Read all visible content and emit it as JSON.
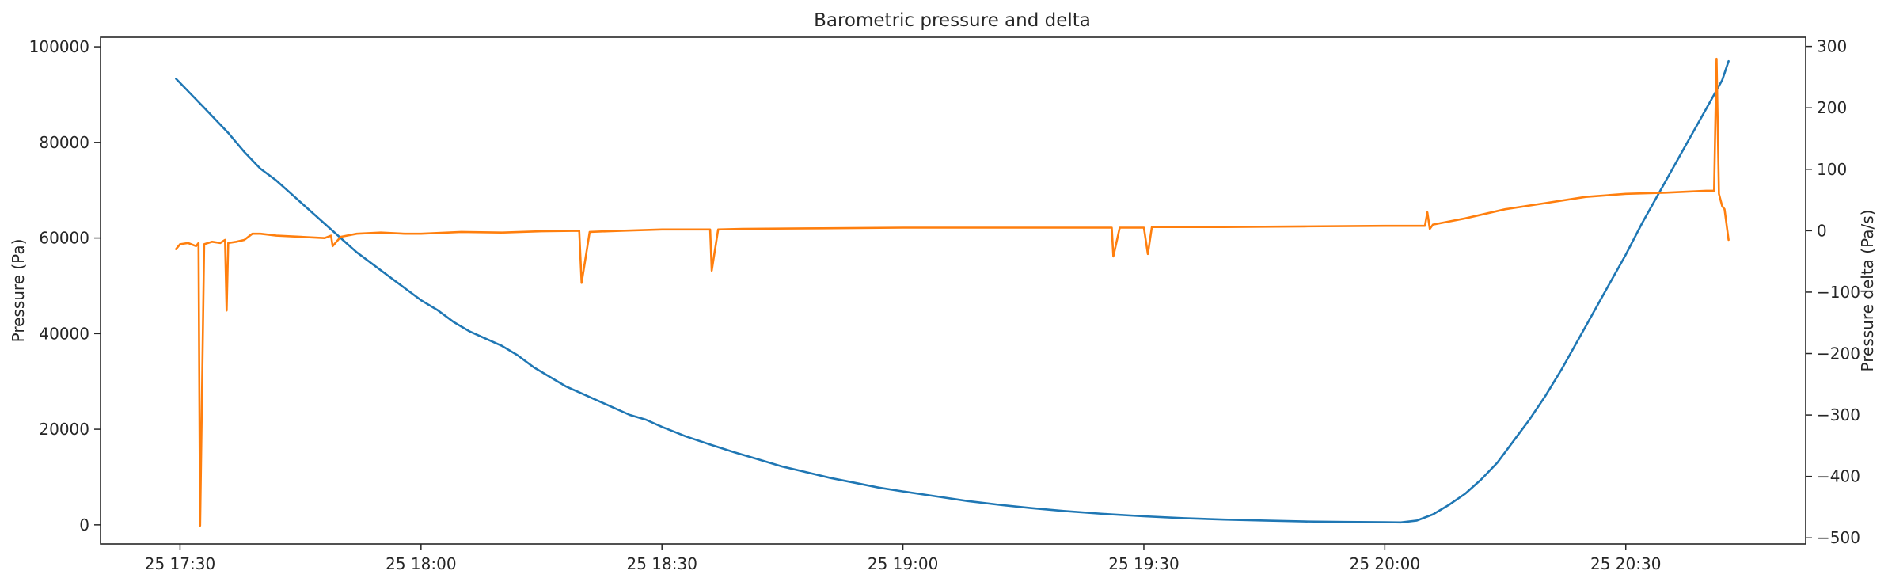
{
  "chart_data": {
    "type": "line",
    "title": "Barometric pressure and delta",
    "xlabel": "",
    "ylabel": "Pressure (Pa)",
    "y2label": "Pressure delta (Pa/s)",
    "x_ticks": [
      "25 17:30",
      "25 18:00",
      "25 18:30",
      "25 19:00",
      "25 19:30",
      "25 20:00",
      "25 20:30"
    ],
    "x_tick_minutes": [
      1050,
      1080,
      1110,
      1140,
      1170,
      1200,
      1230
    ],
    "xlim_minutes": [
      1040.1,
      1252.4
    ],
    "y_ticks": [
      0,
      20000,
      40000,
      60000,
      80000,
      100000
    ],
    "y_tick_labels": [
      "0",
      "20000",
      "40000",
      "60000",
      "80000",
      "100000"
    ],
    "ylim": [
      -4000,
      102000
    ],
    "y2_ticks": [
      -500,
      -400,
      -300,
      -200,
      -100,
      0,
      100,
      200,
      300
    ],
    "y2_tick_labels": [
      "−500",
      "−400",
      "−300",
      "−200",
      "−100",
      "0",
      "100",
      "200",
      "300"
    ],
    "y2lim": [
      -510,
      315
    ],
    "grid": false,
    "legend": "none",
    "series": [
      {
        "axis": "left",
        "color": "#1f77b4",
        "x": [
          1049.5,
          1052,
          1054,
          1056,
          1058,
          1060,
          1062,
          1064,
          1066,
          1068,
          1070,
          1072,
          1074,
          1076,
          1078,
          1080,
          1082,
          1084,
          1086,
          1088,
          1090,
          1092,
          1094,
          1096,
          1098,
          1100,
          1102,
          1104,
          1106,
          1108,
          1110,
          1113,
          1116,
          1119,
          1122,
          1125,
          1128,
          1131,
          1134,
          1137,
          1140,
          1144,
          1148,
          1152,
          1156,
          1160,
          1165,
          1170,
          1175,
          1180,
          1185,
          1190,
          1195,
          1200,
          1202,
          1204,
          1206,
          1208,
          1210,
          1212,
          1214,
          1216,
          1218,
          1220,
          1222,
          1224,
          1226,
          1228,
          1230,
          1232,
          1234,
          1236,
          1238,
          1240,
          1242,
          1242.8
        ],
        "values": [
          93300,
          89000,
          85500,
          82000,
          78000,
          74500,
          72000,
          69000,
          66000,
          63000,
          60000,
          57000,
          54500,
          52000,
          49500,
          47000,
          45000,
          42500,
          40500,
          39000,
          37500,
          35500,
          33000,
          31000,
          29000,
          27500,
          26000,
          24500,
          23000,
          22000,
          20500,
          18500,
          16800,
          15200,
          13700,
          12200,
          11000,
          9800,
          8800,
          7800,
          7000,
          6000,
          5000,
          4200,
          3500,
          2900,
          2300,
          1800,
          1400,
          1100,
          900,
          700,
          600,
          550,
          500,
          900,
          2200,
          4200,
          6500,
          9500,
          13000,
          17500,
          22000,
          27000,
          32500,
          38500,
          44500,
          50500,
          56500,
          63000,
          69000,
          75000,
          81000,
          87000,
          93000,
          97000
        ]
      },
      {
        "axis": "right",
        "color": "#ff7f0e",
        "x": [
          1049.5,
          1050,
          1051,
          1052,
          1052.3,
          1052.5,
          1053,
          1054,
          1055,
          1055.6,
          1055.8,
          1056,
          1057,
          1058,
          1059,
          1060,
          1062,
          1065,
          1068,
          1068.8,
          1069,
          1070,
          1072,
          1075,
          1078,
          1080,
          1085,
          1090,
          1095,
          1099.7,
          1100,
          1101,
          1105,
          1110,
          1115,
          1116,
          1116.2,
          1117,
          1120,
          1130,
          1140,
          1150,
          1160,
          1166,
          1166.2,
          1167,
          1170,
          1170.5,
          1171,
          1180,
          1190,
          1200,
          1205,
          1205.3,
          1205.6,
          1206,
          1210,
          1215,
          1220,
          1225,
          1230,
          1235,
          1240,
          1241,
          1241.3,
          1241.6,
          1242,
          1242.3,
          1242.8
        ],
        "values": [
          -30,
          -22,
          -20,
          -25,
          -20,
          -480,
          -22,
          -18,
          -20,
          -15,
          -130,
          -20,
          -18,
          -15,
          -5,
          -5,
          -8,
          -10,
          -12,
          -8,
          -25,
          -10,
          -5,
          -3,
          -5,
          -5,
          -2,
          -3,
          -1,
          0,
          -85,
          -2,
          0,
          2,
          2,
          2,
          -65,
          2,
          3,
          4,
          5,
          5,
          5,
          5,
          -42,
          5,
          5,
          -38,
          6,
          6,
          7,
          8,
          8,
          30,
          3,
          10,
          20,
          35,
          45,
          55,
          60,
          62,
          65,
          65,
          280,
          60,
          40,
          35,
          -15
        ]
      }
    ]
  }
}
